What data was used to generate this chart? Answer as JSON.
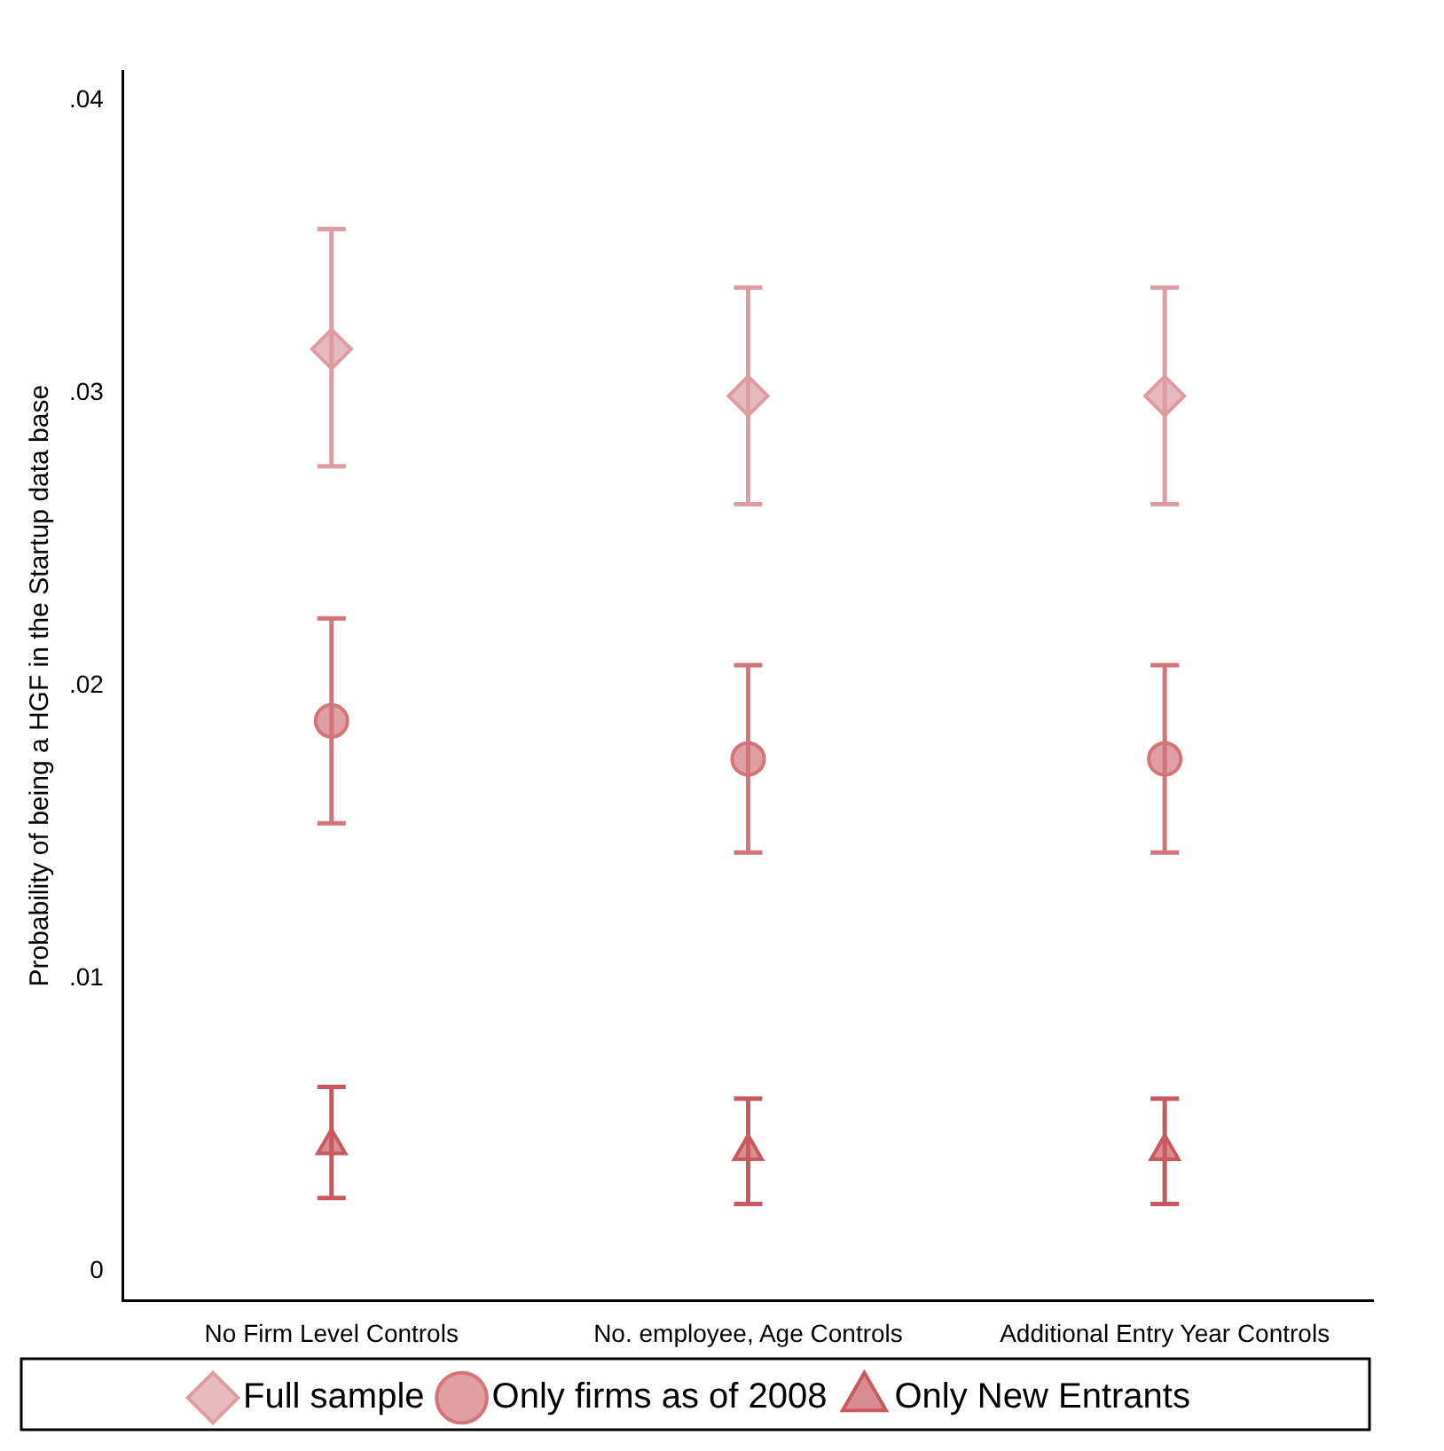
{
  "chart_data": {
    "type": "scatter",
    "ylabel": "Probability of being a HGF in the Startup data base",
    "categories": [
      "No Firm Level Controls",
      "No. employee, Age Controls",
      "Additional Entry Year Controls"
    ],
    "ylim": [
      -0.001,
      0.041
    ],
    "yticks": [
      {
        "value": 0,
        "label": "0"
      },
      {
        "value": 0.01,
        "label": ".01"
      },
      {
        "value": 0.02,
        "label": ".02"
      },
      {
        "value": 0.03,
        "label": ".03"
      },
      {
        "value": 0.04,
        "label": ".04"
      }
    ],
    "grid": false,
    "legend": "bottom",
    "series": [
      {
        "name": "Full sample",
        "color": "#dc9ca1",
        "marker": "diamond",
        "values": [
          0.0315,
          0.0299,
          0.0299
        ],
        "errors": [
          [
            0.0275,
            0.0356
          ],
          [
            0.0262,
            0.0336
          ],
          [
            0.0262,
            0.0336
          ]
        ]
      },
      {
        "name": "Only firms as of 2008",
        "color": "#d27479",
        "marker": "circle",
        "values": [
          0.0188,
          0.0175,
          0.0175
        ],
        "errors": [
          [
            0.0153,
            0.0223
          ],
          [
            0.0143,
            0.0207
          ],
          [
            0.0143,
            0.0207
          ]
        ]
      },
      {
        "name": "Only New Entrants",
        "color": "#c85a5f",
        "marker": "triangle",
        "values": [
          0.0043,
          0.0041,
          0.0041
        ],
        "errors": [
          [
            0.0025,
            0.0063
          ],
          [
            0.0023,
            0.0059
          ],
          [
            0.0023,
            0.0059
          ]
        ]
      }
    ]
  }
}
